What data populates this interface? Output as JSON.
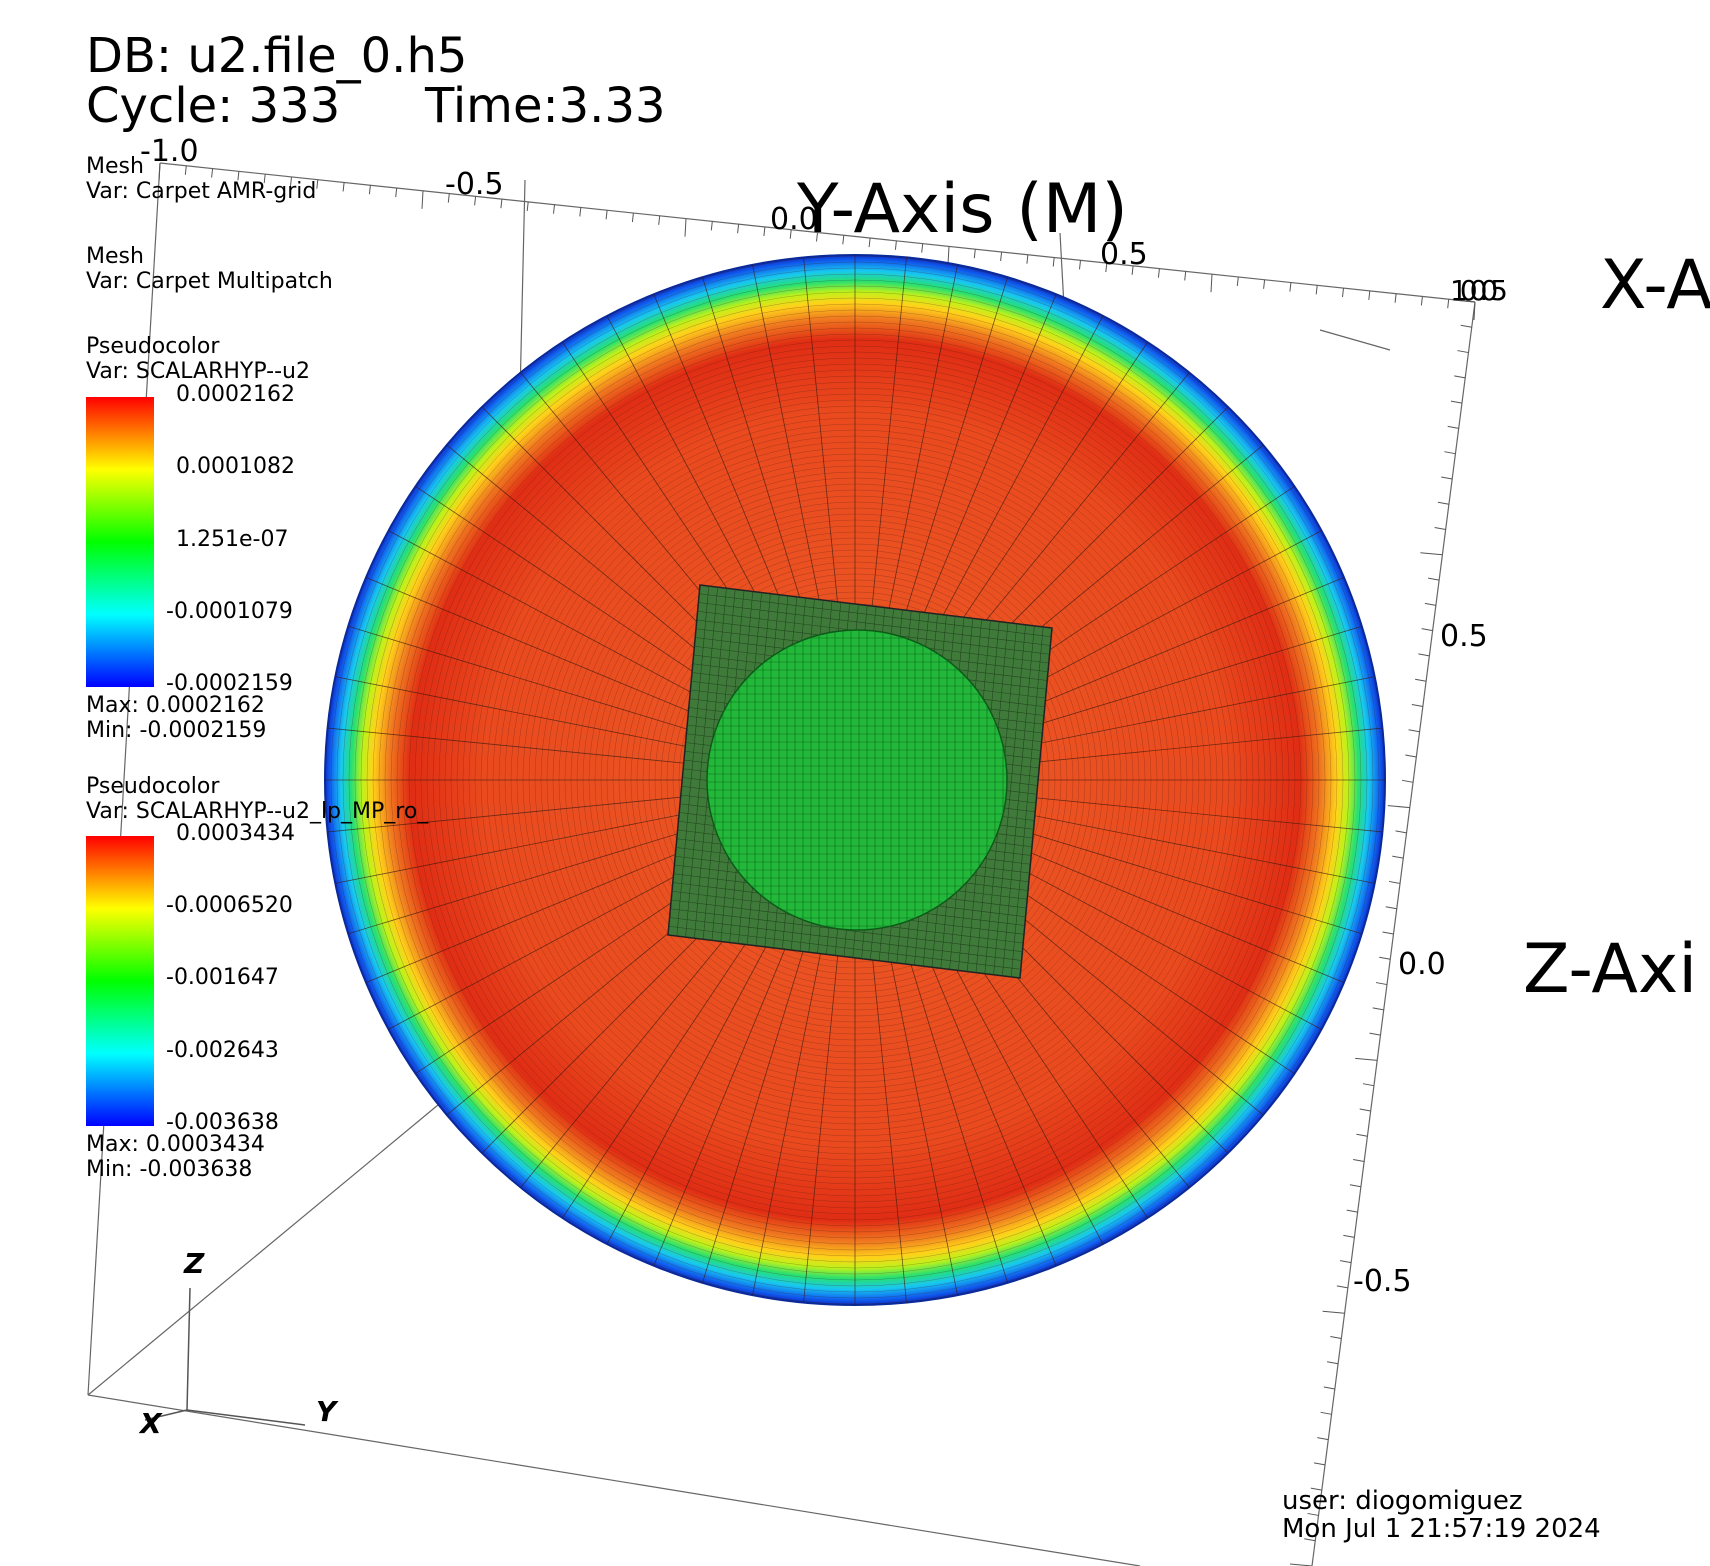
{
  "header": {
    "db": "DB: u2.file_0.h5",
    "cycle": "Cycle: 333",
    "time": "Time:3.33"
  },
  "legends": [
    {
      "plot": "Mesh",
      "var": "Var: Carpet AMR-grid"
    },
    {
      "plot": "Mesh",
      "var": "Var: Carpet Multipatch"
    },
    {
      "plot": "Pseudocolor",
      "var": "Var: SCALARHYP--u2",
      "ticks": [
        "0.0002162",
        "0.0001082",
        "1.251e-07",
        "-0.0001079",
        "-0.0002159"
      ],
      "max": "Max:  0.0002162",
      "min": "Min: -0.0002159"
    },
    {
      "plot": "Pseudocolor",
      "var": "Var: SCALARHYP--u2_lp_MP_ro_",
      "ticks": [
        "0.0003434",
        "-0.0006520",
        "-0.001647",
        "-0.002643",
        "-0.003638"
      ],
      "max": "Max:  0.0003434",
      "min": "Min: -0.003638"
    }
  ],
  "axes": {
    "y_title": "Y-Axis (M)",
    "x_title": "X-A",
    "z_title": "Z-Axi",
    "y_ticks": [
      "-1.0",
      "-0.5",
      "0.0",
      "0.5"
    ],
    "z_ticks": [
      "0.5",
      "0.0",
      "-0.5"
    ],
    "corner_clutter": "100.05"
  },
  "triad": {
    "x": "X",
    "y": "Y",
    "z": "Z"
  },
  "footer": {
    "user": "user: diogomiguez",
    "date": "Mon Jul  1 21:57:19 2024"
  },
  "colors": {
    "scale": [
      "#ff0000",
      "#ffff00",
      "#00ff00",
      "#00ffff",
      "#0000ff"
    ],
    "field": "#e8441f",
    "inner": "#22b83a"
  }
}
